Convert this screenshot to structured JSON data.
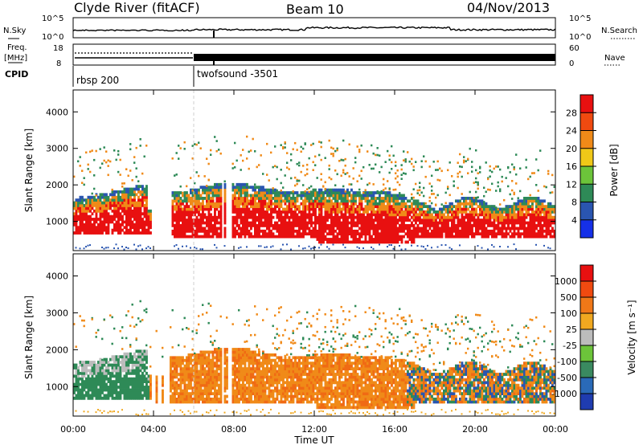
{
  "header": {
    "title": "Clyde River (fitACF)",
    "beam": "Beam 10",
    "date": "04/Nov/2013"
  },
  "ancillary": {
    "nsky_label": "N.Sky",
    "nsearch_label": "N.Search",
    "nsky_ticks": [
      "10^5",
      "10^0"
    ],
    "nsearch_ticks": [
      "10^5",
      "10^0"
    ],
    "freq_label": "Freq.",
    "freq_unit": "[MHz]",
    "freq_ticks": [
      "18",
      "8"
    ],
    "nave_label": "Nave",
    "nave_ticks": [
      "60",
      "0"
    ],
    "cpid_label": "CPID",
    "cpid_segments": [
      {
        "name": "rbsp 200",
        "start": "00:00"
      },
      {
        "name": "twofsound -3501",
        "start": "06:00"
      }
    ]
  },
  "chart_data": [
    {
      "type": "heatmap",
      "name": "power",
      "xlabel": "",
      "ylabel": "Slant Range [km]",
      "ylim": [
        200,
        4600
      ],
      "yticks": [
        "1000",
        "2000",
        "3000",
        "4000"
      ],
      "colorbar": {
        "label": "Power [dB]",
        "range": [
          0,
          32
        ],
        "ticks": [
          "4",
          "8",
          "12",
          "16",
          "20",
          "24",
          "28"
        ],
        "colors": [
          "#1530e8",
          "#2a55b0",
          "#2e8a57",
          "#6cc43a",
          "#f0c818",
          "#f08a18",
          "#f04a10",
          "#e81010"
        ]
      }
    },
    {
      "type": "heatmap",
      "name": "velocity",
      "xlabel": "Time UT",
      "ylabel": "Slant Range [km]",
      "ylim": [
        200,
        4600
      ],
      "yticks": [
        "1000",
        "2000",
        "3000",
        "4000"
      ],
      "xticks": [
        "00:00",
        "04:00",
        "08:00",
        "12:00",
        "16:00",
        "20:00",
        "00:00"
      ],
      "colorbar": {
        "label": "Velocity [m s⁻¹]",
        "ticks": [
          "1000",
          "500",
          "100",
          "25",
          "-25",
          "-100",
          "-500",
          "-1000"
        ],
        "colors": [
          "#1f3cb0",
          "#2a6ab8",
          "#3a8a60",
          "#6cc43a",
          "#bcbcbc",
          "#f0a820",
          "#f07818",
          "#f04a10",
          "#e81010"
        ]
      }
    }
  ],
  "colors": {
    "red": "#e81010",
    "orange": "#f08a18",
    "green": "#2e8a57",
    "blue": "#2a55b0",
    "grey": "#bcbcbc"
  }
}
